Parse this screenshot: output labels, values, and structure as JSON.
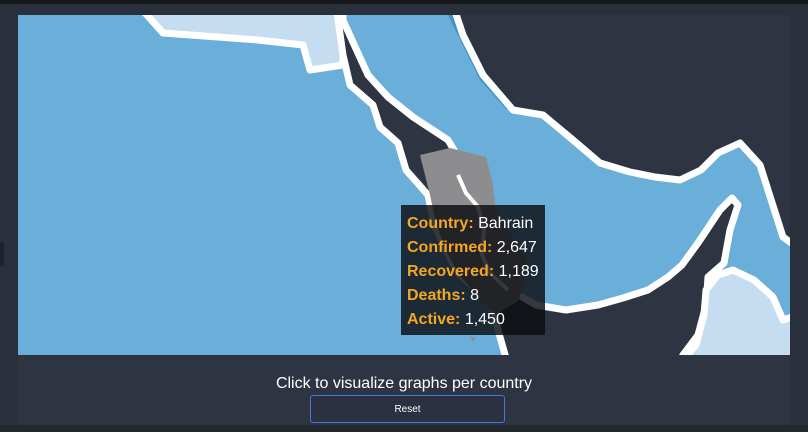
{
  "map": {
    "colors": {
      "water_light": "#6aafd9",
      "water_dark": "#4291c7",
      "land_dark": "#2e3441",
      "land_light": "#c6dcf0",
      "highlight": "#8d8d8f",
      "border": "#ffffff"
    },
    "highlighted_country": "Bahrain"
  },
  "tooltip": {
    "rows": [
      {
        "key": "Country:",
        "value": "Bahrain"
      },
      {
        "key": "Confirmed:",
        "value": "2,647"
      },
      {
        "key": "Recovered:",
        "value": "1,189"
      },
      {
        "key": "Deaths:",
        "value": "8"
      },
      {
        "key": "Active:",
        "value": "1,450"
      }
    ]
  },
  "footer": {
    "hint": "Click to visualize graphs per country",
    "reset_label": "Reset"
  }
}
